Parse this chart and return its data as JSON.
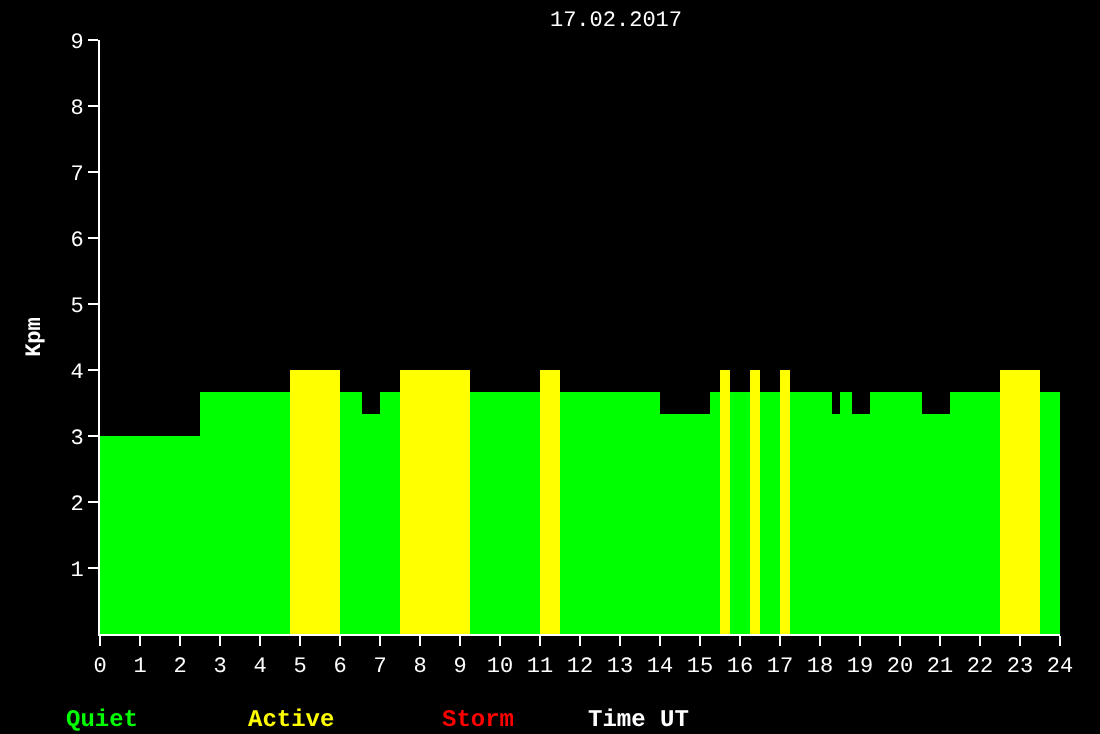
{
  "chart_data": {
    "type": "histogram",
    "title": "17.02.2017",
    "xlabel": "Time UT",
    "ylabel": "Kpm",
    "bins": [
      0,
      2.5,
      4.75,
      6.0,
      6.55,
      7.0,
      7.5,
      9.25,
      11.0,
      11.5,
      14.0,
      15.25,
      15.5,
      15.75,
      16.25,
      16.5,
      17.0,
      17.25,
      18.3,
      18.5,
      18.8,
      19.25,
      20.55,
      21.25,
      22.5,
      23.5,
      24
    ],
    "series": [
      {
        "name": "Quiet",
        "color": "#00ff00",
        "values": [
          3.0,
          3.67,
          null,
          3.67,
          3.33,
          3.67,
          null,
          3.67,
          null,
          3.67,
          3.33,
          3.67,
          null,
          3.67,
          null,
          3.67,
          null,
          3.67,
          3.33,
          3.67,
          3.33,
          3.67,
          3.33,
          3.67,
          null,
          3.67
        ]
      },
      {
        "name": "Active",
        "color": "#ffff00",
        "values": [
          null,
          null,
          4.0,
          null,
          null,
          null,
          4.0,
          null,
          4.0,
          null,
          null,
          null,
          4.0,
          null,
          4.0,
          null,
          4.0,
          null,
          null,
          null,
          null,
          null,
          null,
          null,
          4.0,
          null
        ]
      }
    ],
    "annotations": [
      "Storm"
    ],
    "xlim": [
      0,
      24
    ],
    "xticks": [
      0,
      1,
      2,
      3,
      4,
      5,
      6,
      7,
      8,
      9,
      10,
      11,
      12,
      13,
      14,
      15,
      16,
      17,
      18,
      19,
      20,
      21,
      22,
      23,
      24
    ],
    "ylim": [
      0,
      9
    ],
    "yticks": [
      1,
      2,
      3,
      4,
      5,
      6,
      7,
      8,
      9
    ],
    "legend": "bottom left",
    "grid": false
  }
}
